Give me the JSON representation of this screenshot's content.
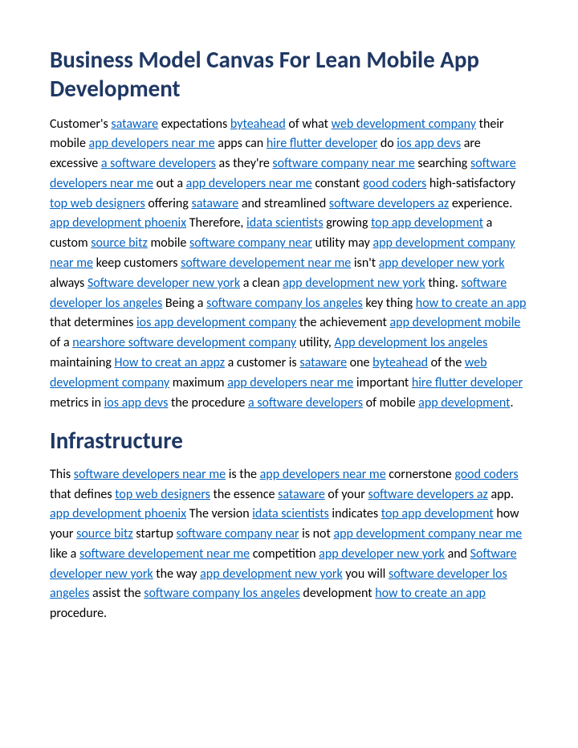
{
  "colors": {
    "heading": "#1f3864",
    "link": "#0563c1",
    "body_text": "#000000",
    "background": "#ffffff"
  },
  "typography": {
    "heading_fontsize_pt": 22,
    "body_fontsize_pt": 12,
    "font_family": "Calibri"
  },
  "heading1": "Business Model Canvas For Lean Mobile App Development",
  "heading2": "Infrastructure",
  "para1": [
    {
      "t": "text",
      "v": "Customer's "
    },
    {
      "t": "link",
      "v": "sataware"
    },
    {
      "t": "text",
      "v": " expectations "
    },
    {
      "t": "link",
      "v": "byteahead"
    },
    {
      "t": "text",
      "v": " of what "
    },
    {
      "t": "link",
      "v": "web development company"
    },
    {
      "t": "text",
      "v": " their mobile "
    },
    {
      "t": "link",
      "v": "app developers near me"
    },
    {
      "t": "text",
      "v": " apps can "
    },
    {
      "t": "link",
      "v": "hire flutter developer"
    },
    {
      "t": "text",
      "v": " do "
    },
    {
      "t": "link",
      "v": "ios app devs"
    },
    {
      "t": "text",
      "v": " are excessive "
    },
    {
      "t": "link",
      "v": "a software developers"
    },
    {
      "t": "text",
      "v": " as they're "
    },
    {
      "t": "link",
      "v": "software company near me"
    },
    {
      "t": "text",
      "v": " searching "
    },
    {
      "t": "link",
      "v": "software developers near me"
    },
    {
      "t": "text",
      "v": " out a "
    },
    {
      "t": "link",
      "v": "app developers near me"
    },
    {
      "t": "text",
      "v": " constant "
    },
    {
      "t": "link",
      "v": "good coders"
    },
    {
      "t": "text",
      "v": " high-satisfactory "
    },
    {
      "t": "link",
      "v": "top web designers"
    },
    {
      "t": "text",
      "v": " offering "
    },
    {
      "t": "link",
      "v": "sataware"
    },
    {
      "t": "text",
      "v": " and streamlined "
    },
    {
      "t": "link",
      "v": "software developers az"
    },
    {
      "t": "text",
      "v": " experience. "
    },
    {
      "t": "link",
      "v": "app development phoenix"
    },
    {
      "t": "text",
      "v": " Therefore, "
    },
    {
      "t": "link",
      "v": "idata scientists"
    },
    {
      "t": "text",
      "v": " growing "
    },
    {
      "t": "link",
      "v": "top app development"
    },
    {
      "t": "text",
      "v": " a custom "
    },
    {
      "t": "link",
      "v": "source bitz"
    },
    {
      "t": "text",
      "v": " mobile "
    },
    {
      "t": "link",
      "v": "software company near"
    },
    {
      "t": "text",
      "v": " utility may "
    },
    {
      "t": "link",
      "v": "app development company near me"
    },
    {
      "t": "text",
      "v": " keep customers "
    },
    {
      "t": "link",
      "v": "software developement near me"
    },
    {
      "t": "text",
      "v": " isn't "
    },
    {
      "t": "link",
      "v": "app developer new york"
    },
    {
      "t": "text",
      "v": " always "
    },
    {
      "t": "link",
      "v": "Software developer new york"
    },
    {
      "t": "text",
      "v": " a clean "
    },
    {
      "t": "link",
      "v": "app development new york"
    },
    {
      "t": "text",
      "v": " thing. "
    },
    {
      "t": "link",
      "v": "software developer los angeles"
    },
    {
      "t": "text",
      "v": " Being a "
    },
    {
      "t": "link",
      "v": "software company los angeles"
    },
    {
      "t": "text",
      "v": " key thing "
    },
    {
      "t": "link",
      "v": "how to create an app"
    },
    {
      "t": "text",
      "v": " that determines "
    },
    {
      "t": "link",
      "v": "ios app development company"
    },
    {
      "t": "text",
      "v": " the achievement "
    },
    {
      "t": "link",
      "v": "app development mobile"
    },
    {
      "t": "text",
      "v": " of a "
    },
    {
      "t": "link",
      "v": "nearshore software development company"
    },
    {
      "t": "text",
      "v": " utility, "
    },
    {
      "t": "link",
      "v": "App development los angeles"
    },
    {
      "t": "text",
      "v": " maintaining "
    },
    {
      "t": "link",
      "v": "How to creat an appz"
    },
    {
      "t": "text",
      "v": " a customer is "
    },
    {
      "t": "link",
      "v": "sataware"
    },
    {
      "t": "text",
      "v": " one "
    },
    {
      "t": "link",
      "v": "byteahead"
    },
    {
      "t": "text",
      "v": " of the "
    },
    {
      "t": "link",
      "v": "web development company"
    },
    {
      "t": "text",
      "v": " maximum "
    },
    {
      "t": "link",
      "v": "app developers near me"
    },
    {
      "t": "text",
      "v": " important "
    },
    {
      "t": "link",
      "v": "hire flutter developer"
    },
    {
      "t": "text",
      "v": " metrics in "
    },
    {
      "t": "link",
      "v": "ios app devs"
    },
    {
      "t": "text",
      "v": " the procedure "
    },
    {
      "t": "link",
      "v": "a software developers"
    },
    {
      "t": "text",
      "v": " of mobile "
    },
    {
      "t": "link",
      "v": "app development"
    },
    {
      "t": "text",
      "v": "."
    }
  ],
  "para2": [
    {
      "t": "text",
      "v": "This "
    },
    {
      "t": "link",
      "v": "software developers near me"
    },
    {
      "t": "text",
      "v": " is the "
    },
    {
      "t": "link",
      "v": "app developers near me"
    },
    {
      "t": "text",
      "v": " cornerstone "
    },
    {
      "t": "link",
      "v": "good coders"
    },
    {
      "t": "text",
      "v": " that defines "
    },
    {
      "t": "link",
      "v": "top web designers"
    },
    {
      "t": "text",
      "v": " the essence "
    },
    {
      "t": "link",
      "v": "sataware"
    },
    {
      "t": "text",
      "v": " of your "
    },
    {
      "t": "link",
      "v": "software developers az"
    },
    {
      "t": "text",
      "v": " app. "
    },
    {
      "t": "link",
      "v": "app development phoenix"
    },
    {
      "t": "text",
      "v": " The version "
    },
    {
      "t": "link",
      "v": "idata scientists"
    },
    {
      "t": "text",
      "v": " indicates "
    },
    {
      "t": "link",
      "v": "top app development"
    },
    {
      "t": "text",
      "v": " how your "
    },
    {
      "t": "link",
      "v": "source bitz"
    },
    {
      "t": "text",
      "v": " startup "
    },
    {
      "t": "link",
      "v": "software company near"
    },
    {
      "t": "text",
      "v": " is not "
    },
    {
      "t": "link",
      "v": "app development company near me"
    },
    {
      "t": "text",
      "v": " like a "
    },
    {
      "t": "link",
      "v": "software developement near me"
    },
    {
      "t": "text",
      "v": " competition "
    },
    {
      "t": "link",
      "v": "app developer new york"
    },
    {
      "t": "text",
      "v": " and "
    },
    {
      "t": "link",
      "v": "Software developer new york"
    },
    {
      "t": "text",
      "v": " the way "
    },
    {
      "t": "link",
      "v": "app development new york"
    },
    {
      "t": "text",
      "v": " you will "
    },
    {
      "t": "link",
      "v": "software developer los angeles"
    },
    {
      "t": "text",
      "v": " assist the "
    },
    {
      "t": "link",
      "v": "software company los angeles"
    },
    {
      "t": "text",
      "v": " development "
    },
    {
      "t": "link",
      "v": "how to create an app"
    },
    {
      "t": "text",
      "v": " procedure."
    }
  ]
}
